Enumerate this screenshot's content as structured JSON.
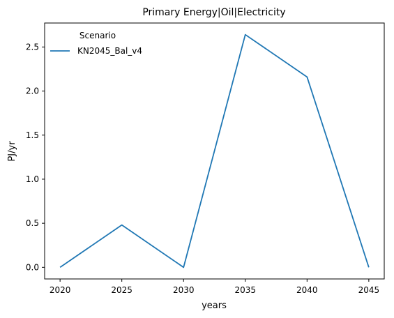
{
  "chart_data": {
    "type": "line",
    "title": "Primary Energy|Oil|Electricity",
    "xlabel": "years",
    "ylabel": "PJ/yr",
    "x": [
      2020,
      2025,
      2030,
      2035,
      2040,
      2045
    ],
    "series": [
      {
        "name": "KN2045_Bal_v4",
        "values": [
          0.0,
          0.48,
          0.0,
          2.64,
          2.16,
          0.0
        ],
        "color": "#1f77b4"
      }
    ],
    "x_ticks": [
      "2020",
      "2025",
      "2030",
      "2035",
      "2040",
      "2045"
    ],
    "y_ticks": [
      "0.0",
      "0.5",
      "1.0",
      "1.5",
      "2.0",
      "2.5"
    ],
    "xlim": [
      2018.75,
      2046.25
    ],
    "ylim": [
      -0.132,
      2.772
    ],
    "grid": false,
    "legend": {
      "title": "Scenario",
      "placement": "top-left"
    }
  }
}
